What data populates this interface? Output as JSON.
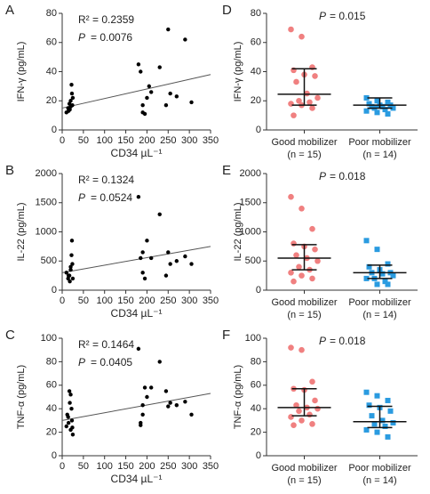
{
  "chart_data": [
    {
      "type": "scatter",
      "panel": "A",
      "ylabel": "IFN-γ (pg/mL)",
      "xlabel": "CD34 µL⁻¹",
      "r2": "R² = 0.2359",
      "p_symbol": "P",
      "p_text": "=  0.0076",
      "xlim": [
        0,
        350
      ],
      "xticks": [
        0,
        50,
        100,
        150,
        200,
        250,
        300,
        350
      ],
      "ylim": [
        0,
        80
      ],
      "yticks": [
        0,
        20,
        40,
        60,
        80
      ],
      "color": "#000000",
      "x": [
        10,
        14,
        17,
        20,
        22,
        23,
        20,
        25,
        18,
        24,
        15,
        180,
        185,
        190,
        195,
        190,
        200,
        205,
        210,
        230,
        250,
        255,
        270,
        290,
        305,
        245
      ],
      "values": [
        12,
        15,
        18,
        16,
        31,
        25,
        20,
        22,
        14,
        17,
        13,
        45,
        40,
        12,
        11,
        17,
        22,
        30,
        26,
        43,
        69,
        25,
        23,
        62,
        19,
        17
      ],
      "trendline": {
        "x": [
          0,
          350
        ],
        "values": [
          15,
          38
        ]
      }
    },
    {
      "type": "scatter",
      "panel": "B",
      "ylabel": "IL-22 (pg/mL)",
      "xlabel": "CD34 µL⁻¹",
      "r2": "R² = 0.1324",
      "p_symbol": "P",
      "p_text": "=  0.0524",
      "xlim": [
        0,
        350
      ],
      "xticks": [
        0,
        50,
        100,
        150,
        200,
        250,
        300,
        350
      ],
      "ylim": [
        0,
        2000
      ],
      "yticks": [
        0,
        500,
        1000,
        1500,
        2000
      ],
      "color": "#000000",
      "x": [
        10,
        14,
        17,
        20,
        22,
        23,
        20,
        25,
        18,
        24,
        15,
        180,
        185,
        190,
        195,
        190,
        200,
        210,
        230,
        245,
        250,
        255,
        270,
        290,
        305
      ],
      "values": [
        300,
        200,
        250,
        350,
        600,
        850,
        400,
        200,
        150,
        450,
        250,
        1600,
        550,
        300,
        200,
        650,
        850,
        550,
        1300,
        250,
        650,
        450,
        500,
        580,
        450
      ],
      "trendline": {
        "x": [
          0,
          350
        ],
        "values": [
          300,
          750
        ]
      }
    },
    {
      "type": "scatter",
      "panel": "C",
      "ylabel": "TNF-α (pg/mL)",
      "xlabel": "CD34 µL⁻¹",
      "r2": "R² = 0.1464",
      "p_symbol": "P",
      "p_text": "=  0.0405",
      "xlim": [
        0,
        350
      ],
      "xticks": [
        0,
        50,
        100,
        150,
        200,
        250,
        300,
        350
      ],
      "ylim": [
        0,
        100
      ],
      "yticks": [
        0,
        20,
        40,
        60,
        80,
        100
      ],
      "color": "#000000",
      "x": [
        10,
        14,
        17,
        20,
        22,
        23,
        20,
        25,
        18,
        24,
        15,
        12,
        180,
        185,
        190,
        195,
        190,
        200,
        210,
        230,
        245,
        250,
        255,
        270,
        290,
        305,
        185
      ],
      "values": [
        25,
        33,
        55,
        52,
        40,
        30,
        22,
        18,
        45,
        24,
        28,
        35,
        91,
        28,
        35,
        58,
        43,
        50,
        58,
        80,
        55,
        42,
        45,
        43,
        46,
        35,
        26
      ],
      "trendline": {
        "x": [
          0,
          350
        ],
        "values": [
          30,
          53
        ]
      }
    },
    {
      "type": "strip",
      "panel": "D",
      "ylabel": "IFN-γ (pg/mL)",
      "p_symbol": "P",
      "p_text": "= 0.015",
      "categories": [
        "Good mobilizer",
        "Poor mobilizer"
      ],
      "category_notes": [
        "(n = 15)",
        "(n = 14)"
      ],
      "ylim": [
        0,
        80
      ],
      "yticks": [
        0,
        20,
        40,
        60,
        80
      ],
      "groups": [
        {
          "color": "#f08080",
          "values": [
            69,
            64,
            43,
            41,
            38,
            37,
            33,
            25,
            22,
            20,
            19,
            18,
            17,
            15,
            10
          ],
          "median": 24.5,
          "q1": 17,
          "q3": 42
        },
        {
          "color": "#2a9be0",
          "values": [
            22,
            20,
            19,
            18,
            17,
            17,
            16,
            16,
            15,
            15,
            14,
            13,
            12,
            11
          ],
          "median": 17,
          "q1": 15,
          "q3": 22
        }
      ]
    },
    {
      "type": "strip",
      "panel": "E",
      "ylabel": "IL-22 (pg/mL)",
      "p_symbol": "P",
      "p_text": "= 0.018",
      "categories": [
        "Good mobilizer",
        "Poor mobilizer"
      ],
      "category_notes": [
        "(n = 15)",
        "(n = 14)"
      ],
      "ylim": [
        0,
        2000
      ],
      "yticks": [
        0,
        500,
        1000,
        1500,
        2000
      ],
      "groups": [
        {
          "color": "#f08080",
          "values": [
            1600,
            1400,
            1050,
            800,
            750,
            700,
            600,
            550,
            500,
            400,
            350,
            300,
            250,
            200,
            150
          ],
          "median": 550,
          "q1": 350,
          "q3": 780
        },
        {
          "color": "#2a9be0",
          "values": [
            850,
            700,
            450,
            400,
            350,
            300,
            300,
            280,
            250,
            200,
            150,
            200,
            100,
            100
          ],
          "median": 300,
          "q1": 200,
          "q3": 430
        }
      ]
    },
    {
      "type": "strip",
      "panel": "F",
      "ylabel": "TNF-α (pg/mL)",
      "p_symbol": "P",
      "p_text": "= 0.018",
      "categories": [
        "Good mobilizer",
        "Poor mobilizer"
      ],
      "category_notes": [
        "(n = 15)",
        "(n = 14)"
      ],
      "ylim": [
        0,
        100
      ],
      "yticks": [
        0,
        20,
        40,
        60,
        80,
        100
      ],
      "groups": [
        {
          "color": "#f08080",
          "values": [
            92,
            90,
            63,
            57,
            56,
            47,
            43,
            41,
            40,
            38,
            35,
            33,
            30,
            27,
            26
          ],
          "median": 41,
          "q1": 34,
          "q3": 57
        },
        {
          "color": "#2a9be0",
          "values": [
            54,
            51,
            47,
            43,
            41,
            38,
            34,
            30,
            28,
            27,
            25,
            22,
            20,
            16
          ],
          "median": 29,
          "q1": 24,
          "q3": 42
        }
      ]
    }
  ]
}
